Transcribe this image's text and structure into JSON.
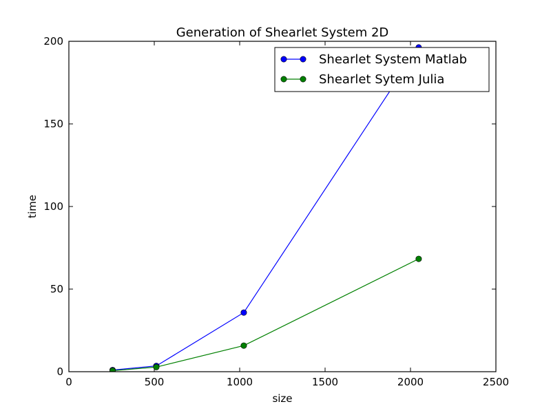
{
  "chart_data": {
    "type": "line",
    "title": "Generation of Shearlet System 2D",
    "xlabel": "size",
    "ylabel": "time",
    "xlim": [
      0,
      2500
    ],
    "ylim": [
      0,
      200
    ],
    "xticks": [
      0,
      500,
      1000,
      1500,
      2000,
      2500
    ],
    "yticks": [
      0,
      50,
      100,
      150,
      200
    ],
    "grid": false,
    "legend_position": "top-right",
    "series": [
      {
        "name": "Shearlet System Matlab",
        "color": "#0000ff",
        "x": [
          256,
          512,
          1024,
          2048
        ],
        "y": [
          1.0,
          3.5,
          35.8,
          196.3
        ]
      },
      {
        "name": "Shearlet Sytem Julia",
        "color": "#008000",
        "x": [
          256,
          512,
          1024,
          2048
        ],
        "y": [
          0.6,
          2.8,
          15.8,
          68.3
        ]
      }
    ]
  }
}
